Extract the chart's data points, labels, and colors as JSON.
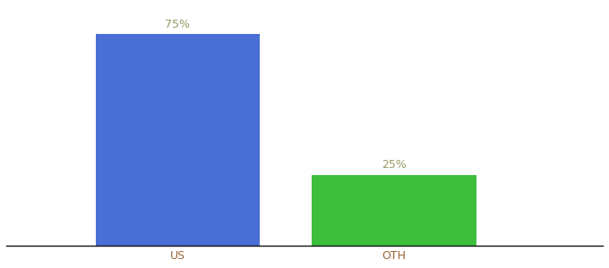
{
  "categories": [
    "US",
    "OTH"
  ],
  "values": [
    75,
    25
  ],
  "bar_colors": [
    "#4a6fd4",
    "#3dbf3d"
  ],
  "label_color": "#999966",
  "label_fontsize": 9,
  "tick_label_color": "#996633",
  "tick_fontsize": 9,
  "background_color": "#ffffff",
  "ylim": [
    0,
    85
  ],
  "bar_width": 0.22,
  "x_positions": [
    0.28,
    0.57
  ],
  "xlim": [
    0.05,
    0.85
  ]
}
